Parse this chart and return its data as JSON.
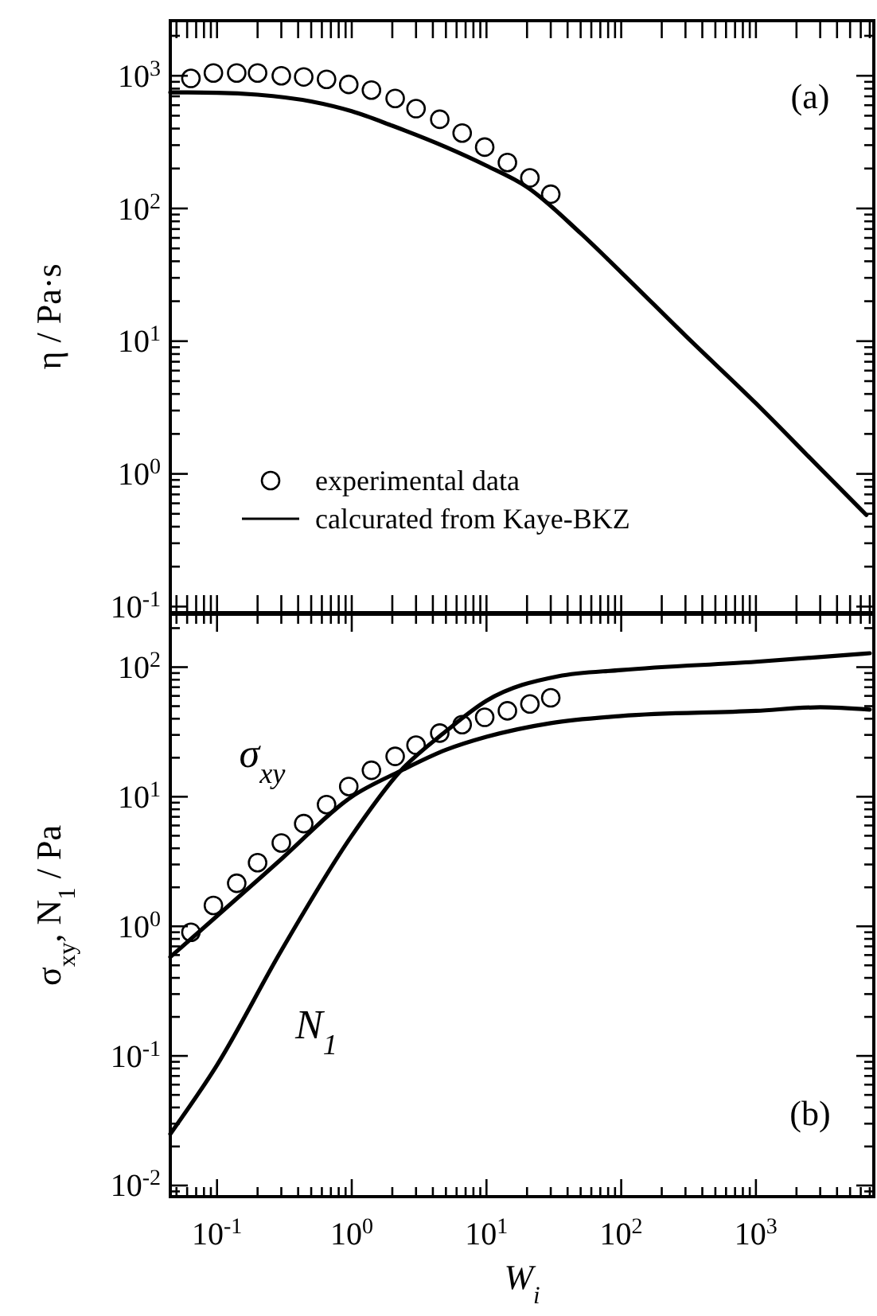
{
  "chart_data": [
    {
      "type": "line",
      "ylabel": "η / Pa·s",
      "log": "xy",
      "legend": "bottom left",
      "tick_labels": "y",
      "annotations": [
        "(a)"
      ],
      "xlim": [
        0.045,
        7500
      ],
      "ylim": [
        0.09,
        2600
      ],
      "xticks": [
        0.05,
        0.06,
        0.07,
        0.08,
        0.09,
        {
          "value": 0.1,
          "label": null
        },
        0.2,
        0.3,
        0.4,
        0.5,
        0.6,
        0.7,
        0.8,
        0.9,
        {
          "value": 1,
          "label": null
        },
        2,
        3,
        4,
        5,
        6,
        7,
        8,
        9,
        {
          "value": 10,
          "label": null
        },
        20,
        30,
        40,
        50,
        60,
        70,
        80,
        90,
        {
          "value": 100,
          "label": null
        },
        200,
        300,
        400,
        500,
        600,
        700,
        800,
        900,
        {
          "value": 1000,
          "label": null
        },
        2000,
        3000,
        4000,
        5000,
        6000,
        7000
      ],
      "yticks": [
        {
          "value": 0.1,
          "label": "10$^{-1}$"
        },
        {
          "value": 0.2,
          "label": null
        },
        {
          "value": 0.3,
          "label": null
        },
        {
          "value": 0.4,
          "label": null
        },
        {
          "value": 0.5,
          "label": null
        },
        {
          "value": 0.6,
          "label": null
        },
        {
          "value": 0.7,
          "label": null
        },
        {
          "value": 0.8,
          "label": null
        },
        {
          "value": 0.9,
          "label": null
        },
        {
          "value": 1,
          "label": "10$^{0}$"
        },
        {
          "value": 2,
          "label": null
        },
        {
          "value": 3,
          "label": null
        },
        {
          "value": 4,
          "label": null
        },
        {
          "value": 5,
          "label": null
        },
        {
          "value": 6,
          "label": null
        },
        {
          "value": 7,
          "label": null
        },
        {
          "value": 8,
          "label": null
        },
        {
          "value": 9,
          "label": null
        },
        {
          "value": 10,
          "label": "10$^{1}$"
        },
        {
          "value": 20,
          "label": null
        },
        {
          "value": 30,
          "label": null
        },
        {
          "value": 40,
          "label": null
        },
        {
          "value": 50,
          "label": null
        },
        {
          "value": 60,
          "label": null
        },
        {
          "value": 70,
          "label": null
        },
        {
          "value": 80,
          "label": null
        },
        {
          "value": 90,
          "label": null
        },
        {
          "value": 100,
          "label": "10$^{2}$"
        },
        {
          "value": 200,
          "label": null
        },
        {
          "value": 300,
          "label": null
        },
        {
          "value": 400,
          "label": null
        },
        {
          "value": 500,
          "label": null
        },
        {
          "value": 600,
          "label": null
        },
        {
          "value": 700,
          "label": null
        },
        {
          "value": 800,
          "label": null
        },
        {
          "value": 900,
          "label": null
        },
        {
          "value": 1000,
          "label": "10$^{3}$"
        },
        {
          "value": 2000,
          "label": null
        }
      ],
      "series": [
        {
          "name": "experimental data",
          "type": "scatter",
          "color": "#000000",
          "x": [
            0.064,
            0.094,
            0.14,
            0.2,
            0.3,
            0.44,
            0.65,
            0.95,
            1.4,
            2.1,
            3.0,
            4.5,
            6.6,
            9.7,
            14.3,
            21,
            30
          ],
          "values": [
            955,
            1050,
            1050,
            1050,
            1000,
            980,
            940,
            860,
            780,
            675,
            565,
            470,
            370,
            290,
            222,
            170,
            128
          ]
        },
        {
          "name": "calcurated from Kaye-BKZ",
          "type": "line",
          "color": "#000000",
          "x": [
            0.045,
            0.1,
            0.2,
            0.5,
            1,
            2,
            5,
            10,
            20,
            50,
            100,
            300,
            1000,
            3000,
            6600
          ],
          "values": [
            750,
            745,
            720,
            640,
            540,
            420,
            290,
            210,
            145,
            65,
            33,
            11,
            3.4,
            1.1,
            0.49
          ]
        }
      ]
    },
    {
      "type": "line",
      "xlabel": "W$_{i}$",
      "ylabel": "σ$_{xy}$, N$_{1}$ / Pa",
      "log": "xy",
      "annotations": [
        "(b)"
      ],
      "xlim": [
        0.045,
        7500
      ],
      "ylim": [
        0.0082,
        256
      ],
      "xticks": [
        {
          "value": 0.05,
          "label": null
        },
        {
          "value": 0.06,
          "label": null
        },
        {
          "value": 0.07,
          "label": null
        },
        {
          "value": 0.08,
          "label": null
        },
        {
          "value": 0.09,
          "label": null
        },
        {
          "value": 0.1,
          "label": "10$^{-1}$"
        },
        {
          "value": 0.2,
          "label": null
        },
        {
          "value": 0.3,
          "label": null
        },
        {
          "value": 0.4,
          "label": null
        },
        {
          "value": 0.5,
          "label": null
        },
        {
          "value": 0.6,
          "label": null
        },
        {
          "value": 0.7,
          "label": null
        },
        {
          "value": 0.8,
          "label": null
        },
        {
          "value": 0.9,
          "label": null
        },
        {
          "value": 1,
          "label": "10$^{0}$"
        },
        {
          "value": 2,
          "label": null
        },
        {
          "value": 3,
          "label": null
        },
        {
          "value": 4,
          "label": null
        },
        {
          "value": 5,
          "label": null
        },
        {
          "value": 6,
          "label": null
        },
        {
          "value": 7,
          "label": null
        },
        {
          "value": 8,
          "label": null
        },
        {
          "value": 9,
          "label": null
        },
        {
          "value": 10,
          "label": "10$^{1}$"
        },
        {
          "value": 20,
          "label": null
        },
        {
          "value": 30,
          "label": null
        },
        {
          "value": 40,
          "label": null
        },
        {
          "value": 50,
          "label": null
        },
        {
          "value": 60,
          "label": null
        },
        {
          "value": 70,
          "label": null
        },
        {
          "value": 80,
          "label": null
        },
        {
          "value": 90,
          "label": null
        },
        {
          "value": 100,
          "label": "10$^{2}$"
        },
        {
          "value": 200,
          "label": null
        },
        {
          "value": 300,
          "label": null
        },
        {
          "value": 400,
          "label": null
        },
        {
          "value": 500,
          "label": null
        },
        {
          "value": 600,
          "label": null
        },
        {
          "value": 700,
          "label": null
        },
        {
          "value": 800,
          "label": null
        },
        {
          "value": 900,
          "label": null
        },
        {
          "value": 1000,
          "label": "10$^{3}$"
        },
        {
          "value": 2000,
          "label": null
        },
        {
          "value": 3000,
          "label": null
        },
        {
          "value": 4000,
          "label": null
        },
        {
          "value": 5000,
          "label": null
        },
        {
          "value": 6000,
          "label": null
        },
        {
          "value": 7000,
          "label": null
        }
      ],
      "yticks": [
        {
          "value": 0.009,
          "label": null
        },
        {
          "value": 0.01,
          "label": "10$^{-2}$"
        },
        {
          "value": 0.02,
          "label": null
        },
        {
          "value": 0.03,
          "label": null
        },
        {
          "value": 0.04,
          "label": null
        },
        {
          "value": 0.05,
          "label": null
        },
        {
          "value": 0.06,
          "label": null
        },
        {
          "value": 0.07,
          "label": null
        },
        {
          "value": 0.08,
          "label": null
        },
        {
          "value": 0.09,
          "label": null
        },
        {
          "value": 0.1,
          "label": "10$^{-1}$"
        },
        {
          "value": 0.2,
          "label": null
        },
        {
          "value": 0.3,
          "label": null
        },
        {
          "value": 0.4,
          "label": null
        },
        {
          "value": 0.5,
          "label": null
        },
        {
          "value": 0.6,
          "label": null
        },
        {
          "value": 0.7,
          "label": null
        },
        {
          "value": 0.8,
          "label": null
        },
        {
          "value": 0.9,
          "label": null
        },
        {
          "value": 1,
          "label": "10$^{0}$"
        },
        {
          "value": 2,
          "label": null
        },
        {
          "value": 3,
          "label": null
        },
        {
          "value": 4,
          "label": null
        },
        {
          "value": 5,
          "label": null
        },
        {
          "value": 6,
          "label": null
        },
        {
          "value": 7,
          "label": null
        },
        {
          "value": 8,
          "label": null
        },
        {
          "value": 9,
          "label": null
        },
        {
          "value": 10,
          "label": "10$^{1}$"
        },
        {
          "value": 20,
          "label": null
        },
        {
          "value": 30,
          "label": null
        },
        {
          "value": 40,
          "label": null
        },
        {
          "value": 50,
          "label": null
        },
        {
          "value": 60,
          "label": null
        },
        {
          "value": 70,
          "label": null
        },
        {
          "value": 80,
          "label": null
        },
        {
          "value": 90,
          "label": null
        },
        {
          "value": 100,
          "label": "10$^{2}$"
        },
        {
          "value": 200,
          "label": null
        }
      ],
      "series": [
        {
          "type": "scatter",
          "color": "#000000",
          "x": [
            0.064,
            0.094,
            0.14,
            0.2,
            0.3,
            0.44,
            0.65,
            0.95,
            1.4,
            2.1,
            3.0,
            4.5,
            6.6,
            9.7,
            14.3,
            21,
            30
          ],
          "values": [
            0.9,
            1.45,
            2.15,
            3.1,
            4.4,
            6.2,
            8.7,
            12,
            16,
            20.5,
            25,
            31,
            36,
            41,
            46,
            52,
            58
          ]
        },
        {
          "name": "σ$_{xy}$",
          "type": "line",
          "color": "#000000",
          "x": [
            0.045,
            0.1,
            0.3,
            1,
            2.3,
            5,
            10,
            30,
            100,
            1000,
            3000,
            7000
          ],
          "values": [
            0.58,
            1.2,
            3.3,
            10,
            15.8,
            23,
            29,
            37,
            42,
            46,
            49,
            47
          ]
        },
        {
          "name": "N$_{1}$",
          "type": "line",
          "color": "#000000",
          "x": [
            0.045,
            0.1,
            0.3,
            1,
            2.3,
            5,
            10,
            34,
            100,
            1000,
            7000
          ],
          "values": [
            0.025,
            0.085,
            0.65,
            5,
            15.8,
            32,
            55,
            85,
            95,
            110,
            128
          ]
        }
      ]
    }
  ]
}
